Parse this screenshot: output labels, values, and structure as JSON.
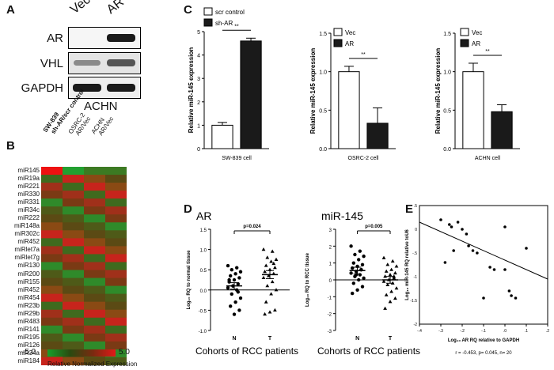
{
  "panels": {
    "a": "A",
    "b": "B",
    "c": "C",
    "d": "D",
    "e": "E"
  },
  "panel_a": {
    "lanes": [
      "Vec",
      "AR"
    ],
    "rows": [
      "AR",
      "VHL",
      "GAPDH"
    ],
    "cell_line": "ACHN"
  },
  "panel_b": {
    "columns": [
      "SW-839",
      "sh-AR/scr control",
      "OSRC-2",
      "AR/Vec",
      "ACHN",
      "AR/Vec"
    ],
    "rows": [
      "miR145",
      "miR19a",
      "miR221",
      "miR330",
      "miR331",
      "miR34c",
      "miR222",
      "miR148a",
      "miR302c",
      "miR452",
      "miRlet7a",
      "miRlet7g",
      "miR130",
      "miR200",
      "miR155",
      "miR452",
      "miR454",
      "miR23b",
      "miR29b",
      "miR483",
      "miR141",
      "miR195",
      "miR126",
      "miR34a",
      "miR184"
    ],
    "scale_min": "-5.0",
    "scale_max": "5.0",
    "scale_label": "Relative Normalized Expression"
  },
  "chart_data": [
    {
      "type": "bar",
      "panel": "C",
      "categories": [
        "scr control",
        "sh-AR"
      ],
      "series": [
        {
          "name": "scr control",
          "values": [
            1.0,
            null
          ]
        },
        {
          "name": "sh-AR",
          "values": [
            null,
            4.6
          ]
        }
      ],
      "errors": [
        0.12,
        0.12
      ],
      "ylabel": "Relative miR-145 expression",
      "xlabel": "SW-839 cell",
      "ylim": [
        0,
        5
      ],
      "yticks": [
        "0",
        "1",
        "2",
        "3",
        "4",
        "5"
      ],
      "significance": "**",
      "legend": [
        "scr control",
        "sh-AR"
      ]
    },
    {
      "type": "bar",
      "panel": "C",
      "categories": [
        "Vec",
        "AR"
      ],
      "series": [
        {
          "name": "Vec",
          "values": [
            1.0,
            null
          ]
        },
        {
          "name": "AR",
          "values": [
            null,
            0.33
          ]
        }
      ],
      "errors": [
        0.07,
        0.2
      ],
      "ylabel": "Relative miR-145 expression",
      "xlabel": "OSRC-2 cell",
      "ylim": [
        0,
        1.5
      ],
      "yticks": [
        "0.0",
        "0.5",
        "1.0",
        "1.5"
      ],
      "significance": "**",
      "legend": [
        "Vec",
        "AR"
      ]
    },
    {
      "type": "bar",
      "panel": "C",
      "categories": [
        "Vec",
        "AR"
      ],
      "series": [
        {
          "name": "Vec",
          "values": [
            1.0,
            null
          ]
        },
        {
          "name": "AR",
          "values": [
            null,
            0.48
          ]
        }
      ],
      "errors": [
        0.11,
        0.09
      ],
      "ylabel": "Relative miR-145 expression",
      "xlabel": "ACHN cell",
      "ylim": [
        0,
        1.5
      ],
      "yticks": [
        "0.0",
        "0.5",
        "1.0",
        "1.5"
      ],
      "significance": "**",
      "legend": [
        "Vec",
        "AR"
      ]
    },
    {
      "type": "scatter",
      "panel": "D",
      "title": "AR",
      "categories": [
        "N",
        "T"
      ],
      "N": [
        0.6,
        0.55,
        0.5,
        0.45,
        0.4,
        0.35,
        0.3,
        0.25,
        0.2,
        0.15,
        0.1,
        0.05,
        0.0,
        -0.1,
        -0.2,
        -0.3,
        -0.4,
        -0.5,
        -0.6,
        0.25,
        -0.05,
        0.1
      ],
      "T": [
        1.0,
        0.95,
        0.8,
        0.75,
        0.7,
        0.6,
        0.55,
        0.5,
        0.45,
        0.4,
        0.35,
        0.3,
        0.2,
        0.1,
        0.0,
        -0.1,
        -0.3,
        -0.5,
        -0.55,
        -0.6,
        0.65
      ],
      "means": [
        0.1,
        0.38
      ],
      "sems": [
        0.08,
        0.1
      ],
      "p": "p=0.024",
      "ylabel": "Log₁₀ RQ to normal tissue",
      "xlabel": "Cohorts of RCC patients",
      "ylim": [
        -1.0,
        1.5
      ],
      "yticks": [
        "-1.0",
        "-0.5",
        "0.0",
        "0.5",
        "1.0",
        "1.5"
      ]
    },
    {
      "type": "scatter",
      "panel": "D",
      "title": "miR-145",
      "categories": [
        "N",
        "T"
      ],
      "N": [
        2.0,
        1.7,
        1.5,
        1.4,
        1.2,
        1.0,
        0.9,
        0.8,
        0.7,
        0.6,
        0.5,
        0.4,
        0.3,
        0.2,
        0.1,
        0.0,
        -0.2,
        -0.4,
        -0.6,
        -0.8,
        0.6,
        0.3
      ],
      "T": [
        1.3,
        1.1,
        0.9,
        0.8,
        0.6,
        0.5,
        0.4,
        0.3,
        0.2,
        0.1,
        0.0,
        -0.1,
        -0.2,
        -0.3,
        -0.5,
        -0.7,
        -0.9,
        -1.1,
        -1.3,
        -1.7,
        0.2
      ],
      "means": [
        0.55,
        0.0
      ],
      "sems": [
        0.2,
        0.2
      ],
      "p": "p=0.005",
      "ylabel": "Log₁₀ RQ to RCC tissue",
      "xlabel": "Cohorts of RCC patients",
      "ylim": [
        -3,
        3
      ],
      "yticks": [
        "-3",
        "-2",
        "-1",
        "0",
        "1",
        "2",
        "3"
      ]
    },
    {
      "type": "scatter",
      "panel": "E",
      "x": [
        -0.3,
        -0.28,
        -0.26,
        -0.25,
        -0.24,
        -0.22,
        -0.2,
        -0.18,
        -0.17,
        -0.15,
        -0.13,
        -0.1,
        -0.07,
        -0.05,
        0.0,
        0.0,
        0.02,
        0.03,
        0.05,
        0.1
      ],
      "y": [
        0.2,
        -0.7,
        0.1,
        0.05,
        -0.45,
        0.15,
        0.0,
        -0.1,
        -0.35,
        -0.45,
        -0.5,
        -1.45,
        -0.8,
        -0.85,
        -0.85,
        0.05,
        -1.3,
        -1.4,
        -1.45,
        -0.4
      ],
      "fit": [
        [
          -0.4,
          0.15
        ],
        [
          0.2,
          -1.05
        ]
      ],
      "ylabel": "Log₁₀ miR-145 RQ relative toU6",
      "xlabel": "Log₁₀ AR RQ relative to GAPDH",
      "stats": "r = -0.453, p= 0.045, n= 20",
      "xlim": [
        -0.4,
        0.2
      ],
      "xticks": [
        "-.4",
        "-.3",
        "-.2",
        "-.1",
        ".0",
        ".1",
        ".2"
      ],
      "ylim": [
        -2,
        0.5
      ],
      "yticks": [
        ".5",
        "0",
        "-.5",
        "-1",
        "-1.5",
        "-2"
      ]
    }
  ]
}
